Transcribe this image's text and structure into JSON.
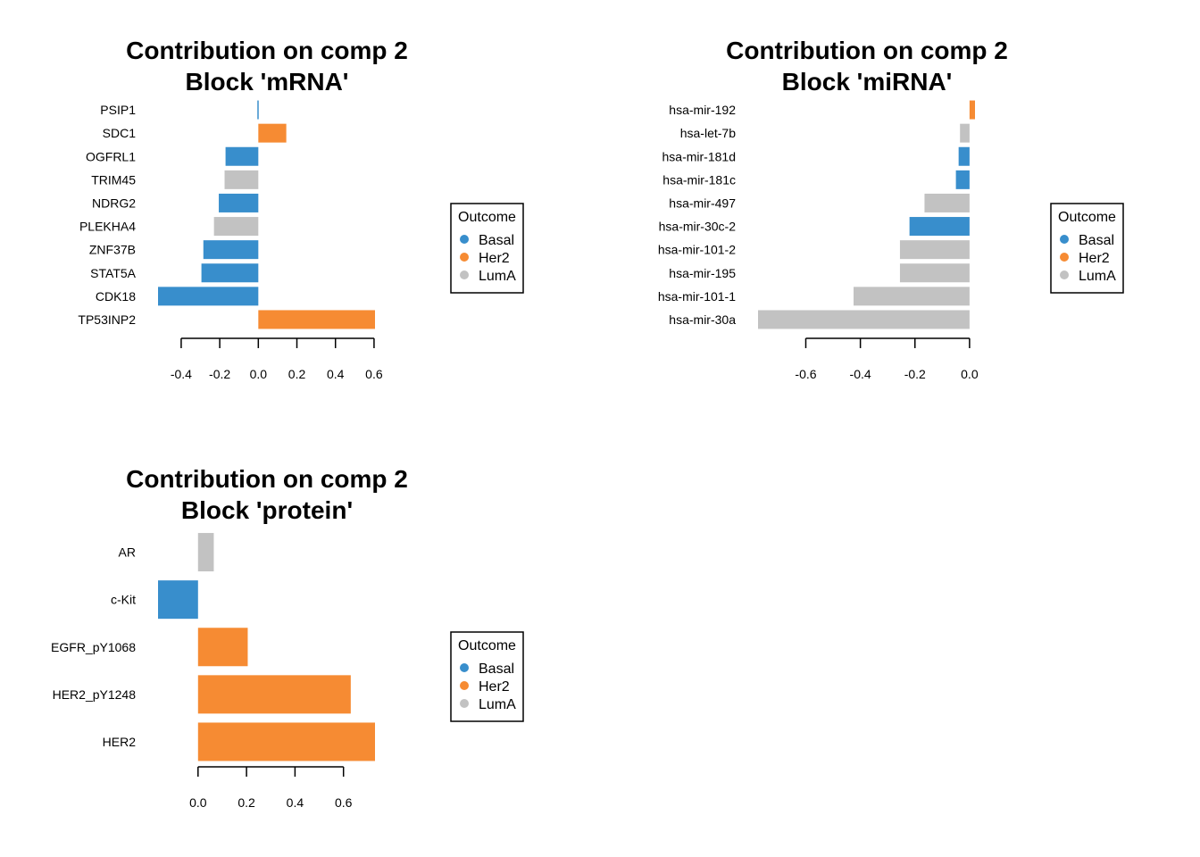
{
  "colors": {
    "Basal": "#388ECC",
    "Her2": "#F68B33",
    "LumA": "#C2C2C2"
  },
  "legend": {
    "title": "Outcome",
    "items": [
      "Basal",
      "Her2",
      "LumA"
    ]
  },
  "chart_data": [
    {
      "type": "bar",
      "orientation": "horizontal",
      "title": [
        "Contribution on comp 2",
        "Block 'mRNA'"
      ],
      "categories": [
        "PSIP1",
        "SDC1",
        "OGFRL1",
        "TRIM45",
        "NDRG2",
        "PLEKHA4",
        "ZNF37B",
        "STAT5A",
        "CDK18",
        "TP53INP2"
      ],
      "values": [
        -0.005,
        0.145,
        -0.17,
        -0.175,
        -0.205,
        -0.23,
        -0.285,
        -0.295,
        -0.52,
        0.605
      ],
      "groups": [
        "Basal",
        "Her2",
        "Basal",
        "LumA",
        "Basal",
        "LumA",
        "Basal",
        "Basal",
        "Basal",
        "Her2"
      ],
      "xticks": [
        -0.4,
        -0.2,
        0.0,
        0.2,
        0.4,
        0.6
      ],
      "xtick_labels": [
        "-0.4",
        "-0.2",
        "0.0",
        "0.2",
        "0.4",
        "0.6"
      ],
      "xlim": [
        -0.52,
        0.605
      ],
      "legend": "right"
    },
    {
      "type": "bar",
      "orientation": "horizontal",
      "title": [
        "Contribution on comp 2",
        "Block 'miRNA'"
      ],
      "categories": [
        "hsa-mir-192",
        "hsa-let-7b",
        "hsa-mir-181d",
        "hsa-mir-181c",
        "hsa-mir-497",
        "hsa-mir-30c-2",
        "hsa-mir-101-2",
        "hsa-mir-195",
        "hsa-mir-101-1",
        "hsa-mir-30a"
      ],
      "values": [
        0.02,
        -0.035,
        -0.04,
        -0.05,
        -0.165,
        -0.22,
        -0.255,
        -0.255,
        -0.425,
        -0.775
      ],
      "groups": [
        "Her2",
        "LumA",
        "Basal",
        "Basal",
        "LumA",
        "Basal",
        "LumA",
        "LumA",
        "LumA",
        "LumA"
      ],
      "xticks": [
        -0.6,
        -0.4,
        -0.2,
        0.0
      ],
      "xtick_labels": [
        "-0.6",
        "-0.4",
        "-0.2",
        "0.0"
      ],
      "xlim": [
        -0.775,
        0.02
      ],
      "legend": "right"
    },
    {
      "type": "bar",
      "orientation": "horizontal",
      "title": [
        "Contribution on comp 2",
        "Block 'protein'"
      ],
      "categories": [
        "AR",
        "c-Kit",
        "EGFR_pY1068",
        "HER2_pY1248",
        "HER2"
      ],
      "values": [
        0.065,
        -0.165,
        0.205,
        0.63,
        0.73
      ],
      "groups": [
        "LumA",
        "Basal",
        "Her2",
        "Her2",
        "Her2"
      ],
      "xticks": [
        0.0,
        0.2,
        0.4,
        0.6
      ],
      "xtick_labels": [
        "0.0",
        "0.2",
        "0.4",
        "0.6"
      ],
      "xlim": [
        -0.165,
        0.73
      ],
      "legend": "right"
    }
  ]
}
